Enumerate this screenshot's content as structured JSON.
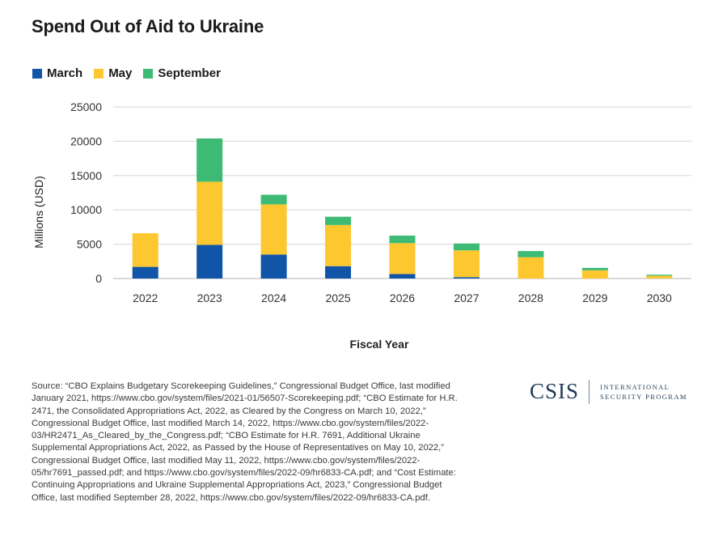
{
  "page": {
    "title": "Spend Out of Aid to Ukraine",
    "source_text": "Source: “CBO Explains Budgetary Scorekeeping Guidelines,” Congressional Budget Office, last modified January 2021, https://www.cbo.gov/system/files/2021-01/56507-Scorekeeping.pdf; “CBO Estimate for H.R. 2471, the Consolidated Appropriations Act, 2022, as Cleared by the Congress on March 10, 2022,” Congressional Budget Office, last modified March 14, 2022, https://www.cbo.gov/system/files/2022-03/HR2471_As_Cleared_by_the_Congress.pdf; “CBO Estimate for H.R. 7691, Additional Ukraine Supplemental Appropriations Act, 2022, as Passed by the House of Representatives on May 10, 2022,” Congressional Budget Office, last modified May 11, 2022, https://www.cbo.gov/system/files/2022-05/hr7691_passed.pdf; and https://www.cbo.gov/system/files/2022-09/hr6833-CA.pdf; and “Cost Estimate: Continuing Appropriations and Ukraine Supplemental Appropriations Act, 2023,” Congressional Budget Office, last modified September 28, 2022, https://www.cbo.gov/system/files/2022-09/hr6833-CA.pdf.",
    "logo": {
      "main": "CSIS",
      "sub_line1": "INTERNATIONAL",
      "sub_line2": "SECURITY PROGRAM"
    }
  },
  "chart_data": {
    "type": "bar",
    "stacked": true,
    "title": "Spend Out of Aid to Ukraine",
    "xlabel": "Fiscal Year",
    "ylabel": "Millions (USD)",
    "categories": [
      "2022",
      "2023",
      "2024",
      "2025",
      "2026",
      "2027",
      "2028",
      "2029",
      "2030"
    ],
    "ylim": [
      0,
      25000
    ],
    "yticks": [
      0,
      5000,
      10000,
      15000,
      20000,
      25000
    ],
    "grid": true,
    "legend_position": "top-left",
    "series": [
      {
        "name": "March",
        "color": "#1155a8",
        "values": [
          1700,
          4900,
          3500,
          1800,
          650,
          200,
          0,
          0,
          0
        ]
      },
      {
        "name": "May",
        "color": "#fdc82f",
        "values": [
          4900,
          9200,
          7300,
          6000,
          4500,
          3900,
          3100,
          1200,
          400
        ]
      },
      {
        "name": "September",
        "color": "#3dba73",
        "values": [
          0,
          6300,
          1400,
          1200,
          1100,
          1000,
          900,
          350,
          150
        ]
      }
    ]
  }
}
